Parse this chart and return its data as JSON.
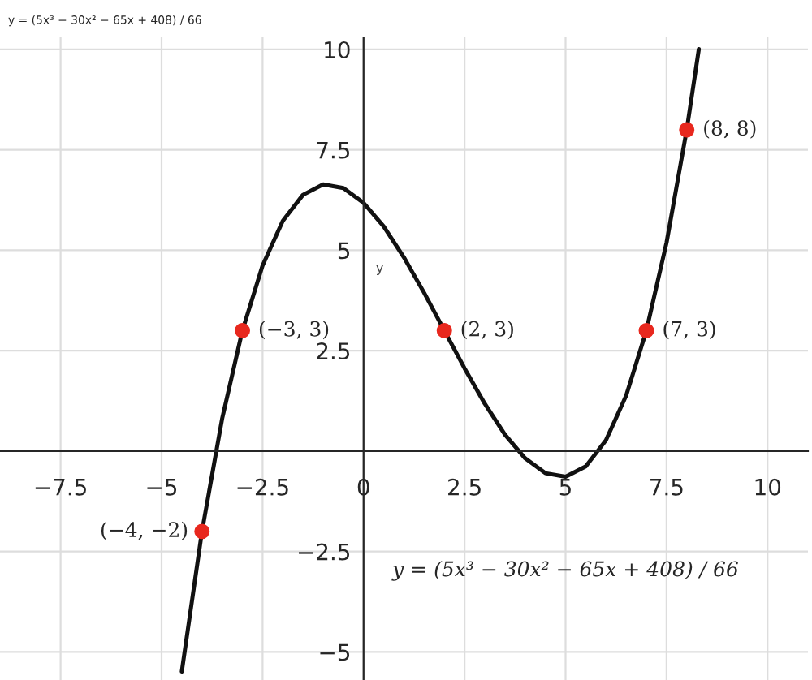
{
  "chart_data": {
    "type": "line",
    "title": "y = (5x³ − 30x² − 65x + 408) / 66",
    "ylabel": "y",
    "series": [
      {
        "color": "#111111",
        "x": [
          -4.5,
          -4,
          -3.5,
          -3,
          -2.5,
          -2,
          -1.5,
          -1,
          -0.5,
          0,
          0.5,
          1,
          1.5,
          2,
          2.5,
          3,
          3.5,
          4,
          4.5,
          5,
          5.5,
          6,
          6.5,
          7,
          7.5,
          8,
          8.3
        ],
        "values": [
          -5.49,
          -2,
          0.81,
          3,
          4.62,
          5.73,
          6.38,
          6.64,
          6.55,
          6.18,
          5.59,
          4.82,
          3.94,
          3,
          2.06,
          1.18,
          0.41,
          -0.18,
          -0.55,
          -0.64,
          -0.38,
          0.27,
          1.38,
          3,
          5.19,
          8,
          10.01
        ]
      },
      {
        "type": "scatter",
        "color": "#e8281e",
        "marker": "circle",
        "x": [
          -4,
          -3,
          2,
          7,
          8
        ],
        "values": [
          -2,
          3,
          3,
          3,
          8
        ]
      }
    ],
    "annotations": [
      {
        "text": "(−4, −2)",
        "x": -4,
        "y": -2
      },
      {
        "text": "(−3, 3)",
        "x": -3,
        "y": 3
      },
      {
        "text": "(2, 3)",
        "x": 2,
        "y": 3
      },
      {
        "text": "(7, 3)",
        "x": 7,
        "y": 3
      },
      {
        "text": "(8, 8)",
        "x": 8,
        "y": 8
      },
      "y = (5x³ − 30x² − 65x + 408) / 66"
    ],
    "xlim": [
      -9,
      11
    ],
    "ylim": [
      -5.7,
      10.3
    ],
    "xticks": [
      {
        "value": -7.5,
        "label": "−7.5"
      },
      {
        "value": -5,
        "label": "−5"
      },
      {
        "value": -2.5,
        "label": "−2.5"
      },
      0,
      2.5,
      5,
      7.5,
      10
    ],
    "yticks": [
      {
        "value": -5,
        "label": "−5"
      },
      {
        "value": -2.5,
        "label": "−2.5"
      },
      2.5,
      5,
      7.5,
      10
    ],
    "grid": true
  }
}
